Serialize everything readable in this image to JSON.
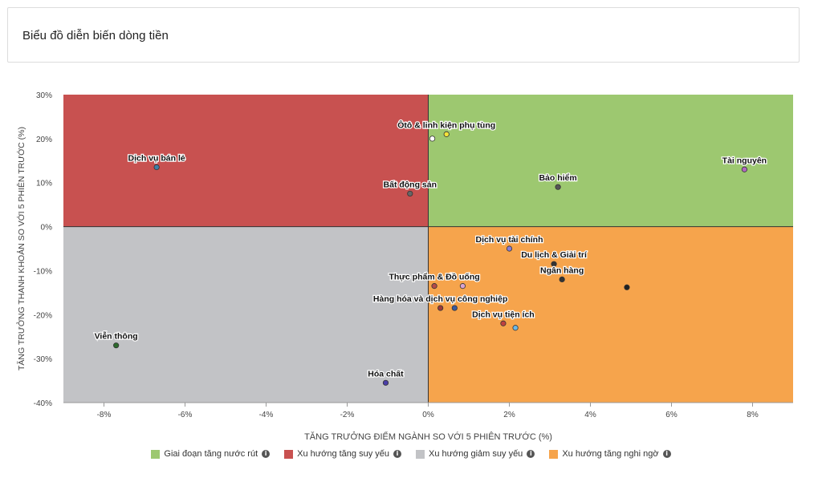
{
  "header": {
    "title": "Biểu đồ diễn biến dòng tiền"
  },
  "chart_data": {
    "type": "scatter",
    "xlabel": "TĂNG TRƯỞNG ĐIỂM NGÀNH SO VỚI 5 PHIÊN TRƯỚC (%)",
    "ylabel": "TĂNG TRƯỞNG THANH KHOẢN SO VỚI 5 PHIÊN TRƯỚC (%)",
    "xlim": [
      -9,
      9
    ],
    "ylim": [
      -40,
      30
    ],
    "x_ticks": [
      -8,
      -6,
      -4,
      -2,
      0,
      2,
      4,
      6,
      8
    ],
    "x_tick_labels": [
      "-8%",
      "-6%",
      "-4%",
      "-2%",
      "0%",
      "2%",
      "4%",
      "6%",
      "8%"
    ],
    "y_ticks": [
      30,
      20,
      10,
      0,
      -10,
      -20,
      -30,
      -40
    ],
    "y_tick_labels": [
      "30%",
      "20%",
      "10%",
      "0%",
      "-10%",
      "-20%",
      "-30%",
      "-40%"
    ],
    "quadrants": [
      {
        "name": "Giai đoạn tăng nước rút",
        "color": "#9dc870",
        "region": "top-right"
      },
      {
        "name": "Xu hướng tăng suy yếu",
        "color": "#c85150",
        "region": "top-left"
      },
      {
        "name": "Xu hướng giảm suy yếu",
        "color": "#c2c3c6",
        "region": "bottom-left"
      },
      {
        "name": "Xu hướng tăng nghi ngờ",
        "color": "#f6a44c",
        "region": "bottom-right"
      }
    ],
    "points": [
      {
        "label": "Ôtô & linh kiện phụ tùng",
        "x": 0.45,
        "y": 21,
        "color": "#f2e23a"
      },
      {
        "label": "",
        "x": 0.1,
        "y": 20,
        "color": "#ffffff"
      },
      {
        "label": "Dịch vụ bán lẻ",
        "x": -6.7,
        "y": 13.5,
        "color": "#3f7fa8"
      },
      {
        "label": "Bất động sản",
        "x": -0.45,
        "y": 7.5,
        "color": "#666666"
      },
      {
        "label": "Bảo hiểm",
        "x": 3.2,
        "y": 9,
        "color": "#555555"
      },
      {
        "label": "Tài nguyên",
        "x": 7.8,
        "y": 13,
        "color": "#b068c0"
      },
      {
        "label": "Dịch vụ tài chính",
        "x": 2.0,
        "y": -5,
        "color": "#8b7fd6"
      },
      {
        "label": "Du lịch & Giải trí",
        "x": 3.1,
        "y": -8.5,
        "color": "#333333"
      },
      {
        "label": "Ngân hàng",
        "x": 3.3,
        "y": -12,
        "color": "#333333"
      },
      {
        "label": "",
        "x": 4.9,
        "y": -13.8,
        "color": "#222222"
      },
      {
        "label": "Thực phẩm & Đồ uống",
        "x": 0.15,
        "y": -13.5,
        "color": "#b44a4a"
      },
      {
        "label": "",
        "x": 0.85,
        "y": -13.5,
        "color": "#d9a3d0"
      },
      {
        "label": "Hàng hóa và dịch vụ công nghiệp",
        "x": 0.3,
        "y": -18.5,
        "color": "#9c3a3a"
      },
      {
        "label": "",
        "x": 0.65,
        "y": -18.5,
        "color": "#3a5aa0"
      },
      {
        "label": "Dịch vụ tiện ích",
        "x": 1.85,
        "y": -22,
        "color": "#c04040"
      },
      {
        "label": "",
        "x": 2.15,
        "y": -23,
        "color": "#6cb8e6"
      },
      {
        "label": "Viễn thông",
        "x": -7.7,
        "y": -27,
        "color": "#2d6a2d"
      },
      {
        "label": "Hóa chất",
        "x": -1.05,
        "y": -35.5,
        "color": "#4a3ea8"
      }
    ],
    "legend_position": "bottom"
  },
  "legend": {
    "items": [
      {
        "label": "Giai đoạn tăng nước rút",
        "color": "#9dc870"
      },
      {
        "label": "Xu hướng tăng suy yếu",
        "color": "#c85150"
      },
      {
        "label": "Xu hướng giảm suy yếu",
        "color": "#c2c3c6"
      },
      {
        "label": "Xu hướng tăng nghi ngờ",
        "color": "#f6a44c"
      }
    ],
    "info_glyph": "i"
  }
}
